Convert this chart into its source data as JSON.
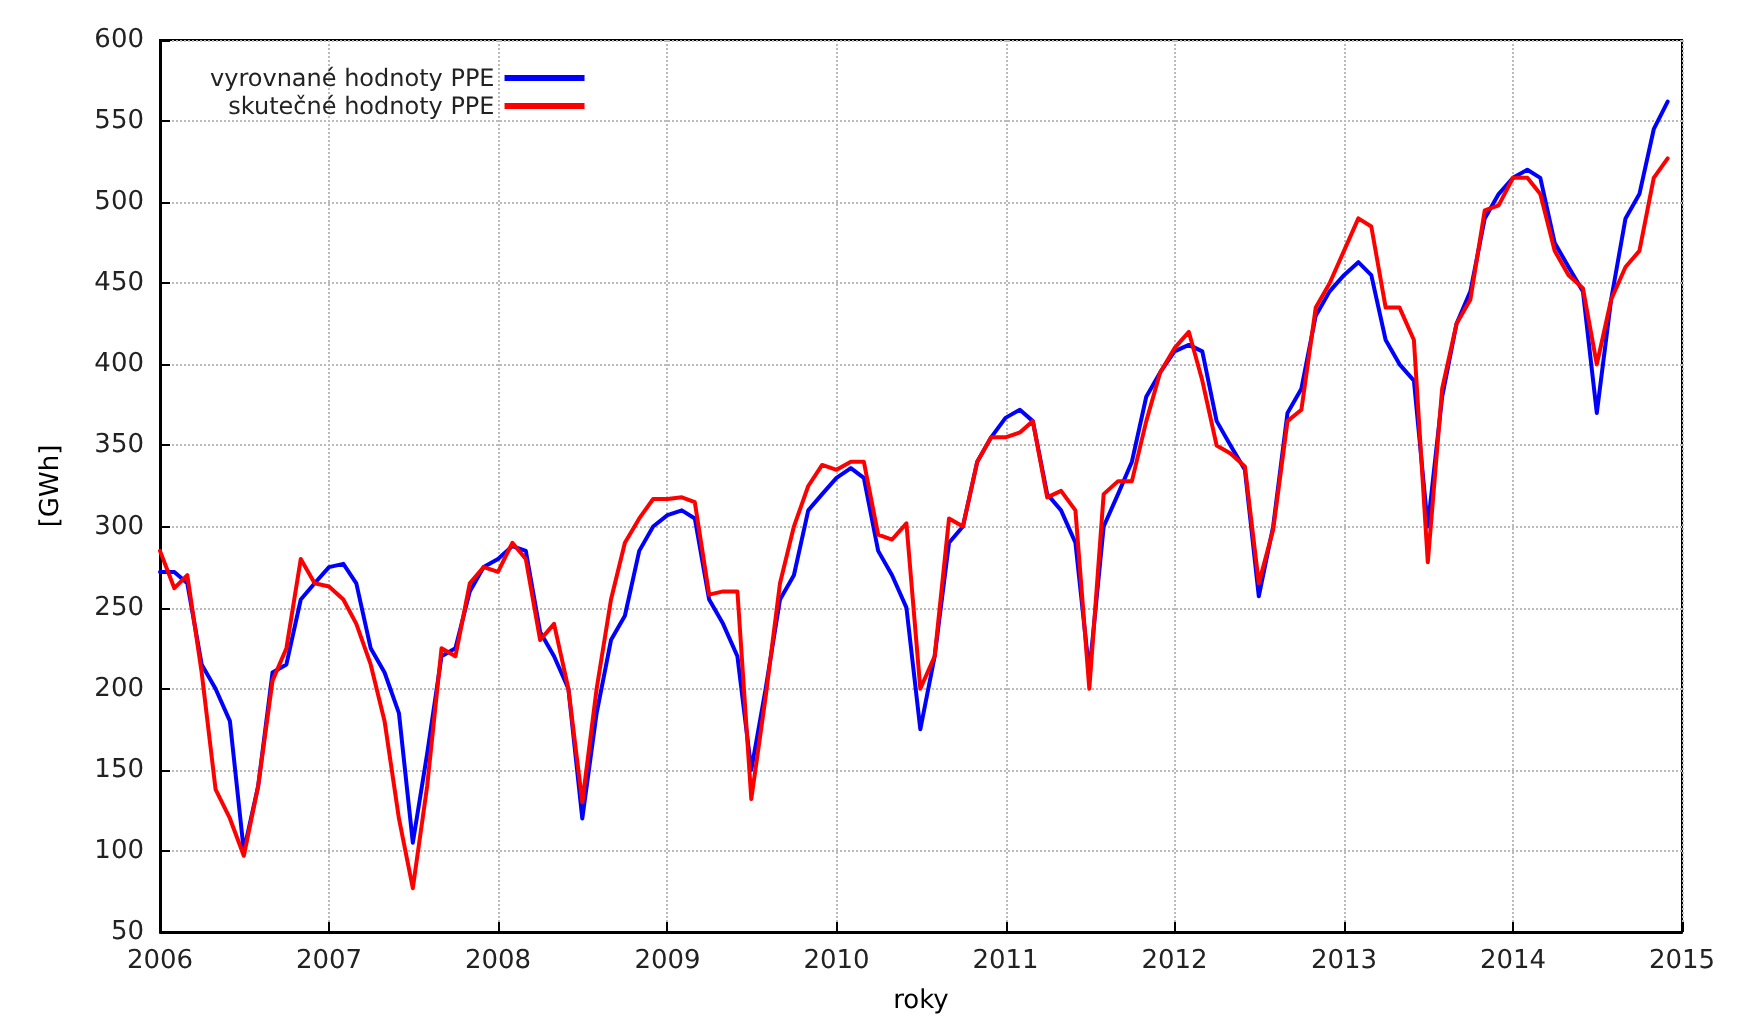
{
  "chart_data": {
    "type": "line",
    "xlabel": "roky",
    "ylabel": "[GWh]",
    "x": [
      "2006-01",
      "2006-02",
      "2006-03",
      "2006-04",
      "2006-05",
      "2006-06",
      "2006-07",
      "2006-08",
      "2006-09",
      "2006-10",
      "2006-11",
      "2006-12",
      "2007-01",
      "2007-02",
      "2007-03",
      "2007-04",
      "2007-05",
      "2007-06",
      "2007-07",
      "2007-08",
      "2007-09",
      "2007-10",
      "2007-11",
      "2007-12",
      "2008-01",
      "2008-02",
      "2008-03",
      "2008-04",
      "2008-05",
      "2008-06",
      "2008-07",
      "2008-08",
      "2008-09",
      "2008-10",
      "2008-11",
      "2008-12",
      "2009-01",
      "2009-02",
      "2009-03",
      "2009-04",
      "2009-05",
      "2009-06",
      "2009-07",
      "2009-08",
      "2009-09",
      "2009-10",
      "2009-11",
      "2009-12",
      "2010-01",
      "2010-02",
      "2010-03",
      "2010-04",
      "2010-05",
      "2010-06",
      "2010-07",
      "2010-08",
      "2010-09",
      "2010-10",
      "2010-11",
      "2010-12",
      "2011-01",
      "2011-02",
      "2011-03",
      "2011-04",
      "2011-05",
      "2011-06",
      "2011-07",
      "2011-08",
      "2011-09",
      "2011-10",
      "2011-11",
      "2011-12",
      "2012-01",
      "2012-02",
      "2012-03",
      "2012-04",
      "2012-05",
      "2012-06",
      "2012-07",
      "2012-08",
      "2012-09",
      "2012-10",
      "2012-11",
      "2012-12",
      "2013-01",
      "2013-02",
      "2013-03",
      "2013-04",
      "2013-05",
      "2013-06",
      "2013-07",
      "2013-08",
      "2013-09",
      "2013-10",
      "2013-11",
      "2013-12",
      "2014-01",
      "2014-02",
      "2014-03",
      "2014-04",
      "2014-05",
      "2014-06",
      "2014-07",
      "2014-08",
      "2014-09",
      "2014-10",
      "2014-11",
      "2014-12"
    ],
    "series": [
      {
        "name": "vyrovnané hodnoty PPE",
        "color": "#0000ff",
        "values": [
          272,
          272,
          265,
          215,
          200,
          180,
          100,
          140,
          210,
          215,
          255,
          265,
          275,
          277,
          265,
          225,
          210,
          185,
          105,
          160,
          220,
          225,
          260,
          275,
          280,
          288,
          285,
          235,
          220,
          200,
          120,
          185,
          230,
          245,
          285,
          300,
          307,
          310,
          305,
          255,
          240,
          220,
          150,
          200,
          255,
          270,
          310,
          320,
          330,
          336,
          330,
          285,
          270,
          250,
          175,
          220,
          290,
          300,
          340,
          355,
          367,
          372,
          365,
          320,
          310,
          290,
          210,
          300,
          320,
          340,
          380,
          395,
          408,
          412,
          408,
          365,
          350,
          335,
          257,
          300,
          370,
          385,
          430,
          445,
          455,
          463,
          455,
          415,
          400,
          390,
          300,
          380,
          425,
          445,
          490,
          505,
          515,
          520,
          515,
          475,
          460,
          445,
          370,
          440,
          490,
          505,
          545,
          562
        ]
      },
      {
        "name": "skutečné hodnoty PPE",
        "color": "#ff0000",
        "values": [
          285,
          262,
          270,
          210,
          138,
          120,
          97,
          140,
          205,
          225,
          280,
          265,
          263,
          255,
          240,
          215,
          180,
          120,
          77,
          140,
          225,
          220,
          265,
          275,
          272,
          290,
          280,
          230,
          240,
          200,
          130,
          200,
          255,
          290,
          305,
          317,
          317,
          318,
          315,
          258,
          260,
          260,
          132,
          195,
          265,
          300,
          325,
          338,
          335,
          340,
          340,
          295,
          292,
          302,
          200,
          220,
          305,
          300,
          340,
          355,
          355,
          358,
          365,
          318,
          322,
          310,
          200,
          320,
          328,
          328,
          365,
          395,
          410,
          420,
          390,
          350,
          345,
          337,
          265,
          298,
          365,
          372,
          435,
          450,
          470,
          490,
          485,
          435,
          435,
          415,
          278,
          385,
          425,
          440,
          495,
          498,
          515,
          515,
          505,
          470,
          455,
          447,
          400,
          440,
          460,
          470,
          515,
          527
        ]
      }
    ],
    "xlim": [
      "2006-01",
      "2015-01"
    ],
    "xticks": [
      {
        "value": "2006-01",
        "label": "2006"
      },
      {
        "value": "2007-01",
        "label": "2007"
      },
      {
        "value": "2008-01",
        "label": "2008"
      },
      {
        "value": "2009-01",
        "label": "2009"
      },
      {
        "value": "2010-01",
        "label": "2010"
      },
      {
        "value": "2011-01",
        "label": "2011"
      },
      {
        "value": "2012-01",
        "label": "2012"
      },
      {
        "value": "2013-01",
        "label": "2013"
      },
      {
        "value": "2014-01",
        "label": "2014"
      },
      {
        "value": "2015-01",
        "label": "2015"
      }
    ],
    "ylim": [
      50,
      600
    ],
    "yticks": [
      50,
      100,
      150,
      200,
      250,
      300,
      350,
      400,
      450,
      500,
      550,
      600
    ],
    "grid": true,
    "legend": "top left",
    "marker": "none",
    "line_style": "solid"
  }
}
